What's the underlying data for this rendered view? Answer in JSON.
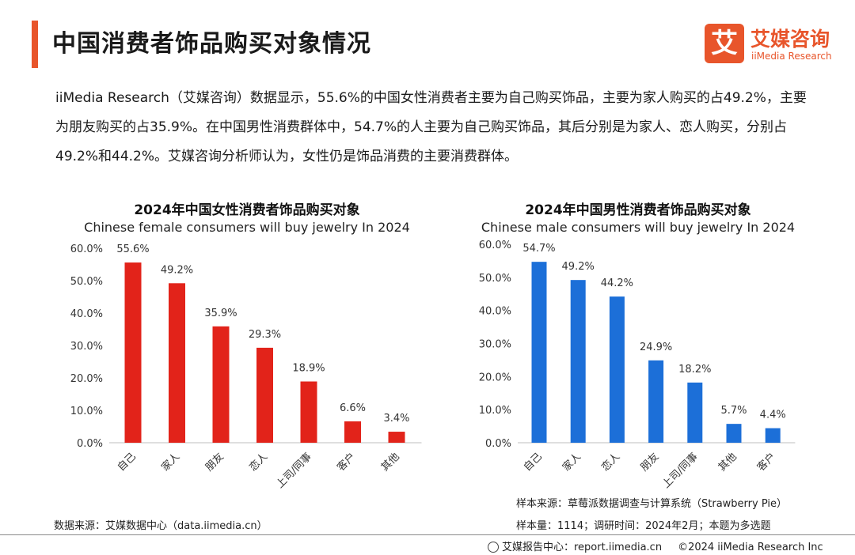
{
  "header": {
    "title": "中国消费者饰品购买对象情况",
    "logo_mark": "艾",
    "logo_cn": "艾媒咨询",
    "logo_en": "iiMedia Research"
  },
  "intro": "iiMedia Research（艾媒咨询）数据显示，55.6%的中国女性消费者主要为自己购买饰品，主要为家人购买的占49.2%，主要为朋友购买的占35.9%。在中国男性消费群体中，54.7%的人主要为自己购买饰品，其后分别是为家人、恋人购买，分别占49.2%和44.2%。艾媒咨询分析师认为，女性仍是饰品消费的主要消费群体。",
  "chart_data": [
    {
      "type": "bar",
      "title": "2024年中国女性消费者饰品购买对象",
      "subtitle": "Chinese female consumers will buy jewelry In 2024",
      "categories": [
        "自己",
        "家人",
        "朋友",
        "恋人",
        "上司/同事",
        "客户",
        "其他"
      ],
      "values": [
        55.6,
        49.2,
        35.9,
        29.3,
        18.9,
        6.6,
        3.4
      ],
      "value_labels": [
        "55.6%",
        "49.2%",
        "35.9%",
        "29.3%",
        "18.9%",
        "6.6%",
        "3.4%"
      ],
      "yticks": [
        "0.0%",
        "10.0%",
        "20.0%",
        "30.0%",
        "40.0%",
        "50.0%",
        "60.0%"
      ],
      "ylim": [
        0,
        60
      ],
      "color": "#e2231a",
      "grid": false,
      "xlabel": "",
      "ylabel": ""
    },
    {
      "type": "bar",
      "title": "2024年中国男性消费者饰品购买对象",
      "subtitle": "Chinese male consumers will buy jewelry In 2024",
      "categories": [
        "自己",
        "家人",
        "恋人",
        "朋友",
        "上司/同事",
        "其他",
        "客户"
      ],
      "values": [
        54.7,
        49.2,
        44.2,
        24.9,
        18.2,
        5.7,
        4.4
      ],
      "value_labels": [
        "54.7%",
        "49.2%",
        "44.2%",
        "24.9%",
        "18.2%",
        "5.7%",
        "4.4%"
      ],
      "yticks": [
        "0.0%",
        "10.0%",
        "20.0%",
        "30.0%",
        "40.0%",
        "50.0%",
        "60.0%"
      ],
      "ylim": [
        0,
        60
      ],
      "color": "#1c6fd8",
      "grid": false,
      "xlabel": "",
      "ylabel": ""
    }
  ],
  "sources": {
    "left": "数据来源：艾媒数据中心（data.iimedia.cn）",
    "sample_source": "样本来源：草莓派数据调查与计算系统（Strawberry Pie）",
    "sample_info": "样本量：1114；调研时间：2024年2月；本题为多选题"
  },
  "footer": {
    "left": "艾媒报告中心：report.iimedia.cn",
    "right": "©2024  iiMedia Research  Inc"
  }
}
